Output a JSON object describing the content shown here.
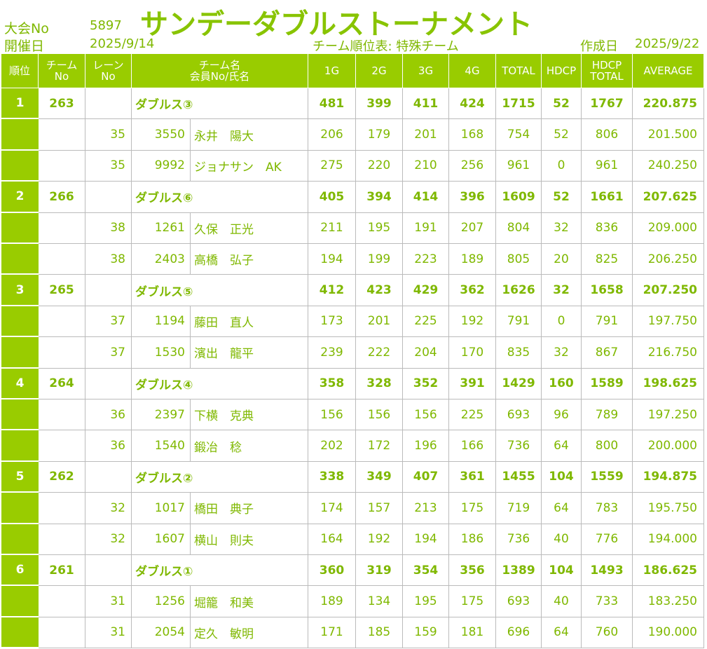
{
  "header": {
    "title": "サンデーダブルストーナメント",
    "event_no_label": "大会No",
    "event_no": "5897",
    "date_label": "開催日",
    "date": "2025/9/14",
    "subtitle": "チーム順位表: 特殊チーム",
    "created_label": "作成日",
    "created": "2025/9/22"
  },
  "table": {
    "columns": [
      [
        "順位"
      ],
      [
        "チーム",
        "No"
      ],
      [
        "レーン",
        "No"
      ],
      [
        "チーム名",
        "会員No/氏名"
      ],
      [
        "1G"
      ],
      [
        "2G"
      ],
      [
        "3G"
      ],
      [
        "4G"
      ],
      [
        "TOTAL"
      ],
      [
        "HDCP"
      ],
      [
        "HDCP",
        "TOTAL"
      ],
      [
        "AVERAGE"
      ]
    ],
    "teams": [
      {
        "rank": 1,
        "team_no": 263,
        "name": "ダブルス③",
        "scores": [
          481,
          399,
          411,
          424,
          1715,
          52,
          1767,
          "220.875"
        ],
        "members": [
          {
            "lane": 35,
            "member_no": 3550,
            "name": "永井　陽大",
            "scores": [
              206,
              179,
              201,
              168,
              754,
              52,
              806,
              "201.500"
            ]
          },
          {
            "lane": 35,
            "member_no": 9992,
            "name": "ジョナサン　AK",
            "scores": [
              275,
              220,
              210,
              256,
              961,
              0,
              961,
              "240.250"
            ]
          }
        ]
      },
      {
        "rank": 2,
        "team_no": 266,
        "name": "ダブルス⑥",
        "scores": [
          405,
          394,
          414,
          396,
          1609,
          52,
          1661,
          "207.625"
        ],
        "members": [
          {
            "lane": 38,
            "member_no": 1261,
            "name": "久保　正光",
            "scores": [
              211,
              195,
              191,
              207,
              804,
              32,
              836,
              "209.000"
            ]
          },
          {
            "lane": 38,
            "member_no": 2403,
            "name": "高橋　弘子",
            "scores": [
              194,
              199,
              223,
              189,
              805,
              20,
              825,
              "206.250"
            ]
          }
        ]
      },
      {
        "rank": 3,
        "team_no": 265,
        "name": "ダブルス⑤",
        "scores": [
          412,
          423,
          429,
          362,
          1626,
          32,
          1658,
          "207.250"
        ],
        "members": [
          {
            "lane": 37,
            "member_no": 1194,
            "name": "藤田　直人",
            "scores": [
              173,
              201,
              225,
              192,
              791,
              0,
              791,
              "197.750"
            ]
          },
          {
            "lane": 37,
            "member_no": 1530,
            "name": "濱出　龍平",
            "scores": [
              239,
              222,
              204,
              170,
              835,
              32,
              867,
              "216.750"
            ]
          }
        ]
      },
      {
        "rank": 4,
        "team_no": 264,
        "name": "ダブルス④",
        "scores": [
          358,
          328,
          352,
          391,
          1429,
          160,
          1589,
          "198.625"
        ],
        "members": [
          {
            "lane": 36,
            "member_no": 2397,
            "name": "下横　克典",
            "scores": [
              156,
              156,
              156,
              225,
              693,
              96,
              789,
              "197.250"
            ]
          },
          {
            "lane": 36,
            "member_no": 1540,
            "name": "鍛冶　稔",
            "scores": [
              202,
              172,
              196,
              166,
              736,
              64,
              800,
              "200.000"
            ]
          }
        ]
      },
      {
        "rank": 5,
        "team_no": 262,
        "name": "ダブルス②",
        "scores": [
          338,
          349,
          407,
          361,
          1455,
          104,
          1559,
          "194.875"
        ],
        "members": [
          {
            "lane": 32,
            "member_no": 1017,
            "name": "橋田　典子",
            "scores": [
              174,
              157,
              213,
              175,
              719,
              64,
              783,
              "195.750"
            ]
          },
          {
            "lane": 32,
            "member_no": 1607,
            "name": "横山　則夫",
            "scores": [
              164,
              192,
              194,
              186,
              736,
              40,
              776,
              "194.000"
            ]
          }
        ]
      },
      {
        "rank": 6,
        "team_no": 261,
        "name": "ダブルス①",
        "scores": [
          360,
          319,
          354,
          356,
          1389,
          104,
          1493,
          "186.625"
        ],
        "members": [
          {
            "lane": 31,
            "member_no": 1256,
            "name": "堀籠　和美",
            "scores": [
              189,
              134,
              195,
              175,
              693,
              40,
              733,
              "183.250"
            ]
          },
          {
            "lane": 31,
            "member_no": 2054,
            "name": "定久　敏明",
            "scores": [
              171,
              185,
              159,
              181,
              696,
              64,
              760,
              "190.000"
            ]
          }
        ]
      }
    ]
  }
}
